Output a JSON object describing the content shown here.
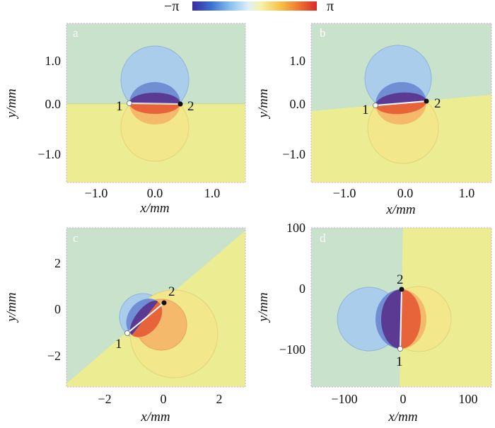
{
  "colorbar": {
    "min_label": "−π",
    "max_label": "π",
    "stops": [
      "#3a2aa0",
      "#3a6fd0",
      "#86c0ec",
      "#dff0f7",
      "#f6f2a8",
      "#f5c54a",
      "#ef7a30",
      "#d8282a"
    ]
  },
  "colors": {
    "background_green": "#c8e2cc",
    "background_yellow": "#ecec92",
    "blue_outer": "#a9cdea",
    "blue_mid": "#6f8ed4",
    "purple_inner": "#5b3a93",
    "yellow_outer": "#f2e78a",
    "orange_mid": "#f4b96a",
    "red_inner": "#e7643a",
    "frame": "#d8a8d8"
  },
  "panels": [
    {
      "letter": "a",
      "x_ticks": [
        "−1.0",
        "0.0",
        "1.0"
      ],
      "x_tick_values": [
        -1.0,
        0.0,
        1.0
      ],
      "y_ticks": [
        "1.0",
        "0.0",
        "−1.0"
      ],
      "y_tick_values": [
        1.0,
        0.0,
        -1.0
      ],
      "x_label": "x/mm",
      "y_label": "y/mm",
      "point1_label": "1",
      "point2_label": "2"
    },
    {
      "letter": "b",
      "x_ticks": [
        "−1.0",
        "0.0",
        "1.0"
      ],
      "x_tick_values": [
        -1.0,
        0.0,
        1.0
      ],
      "y_ticks": [
        "1.0",
        "0.0",
        "−1.0"
      ],
      "y_tick_values": [
        1.0,
        0.0,
        -1.0
      ],
      "x_label": "x/mm",
      "y_label": "y/mm",
      "point1_label": "1",
      "point2_label": "2"
    },
    {
      "letter": "c",
      "x_ticks": [
        "−2",
        "0",
        "2"
      ],
      "x_tick_values": [
        -2,
        0,
        2
      ],
      "y_ticks": [
        "2",
        "0",
        "−2"
      ],
      "y_tick_values": [
        2,
        0,
        -2
      ],
      "x_label": "x/mm",
      "y_label": "y/mm",
      "point1_label": "1",
      "point2_label": "2"
    },
    {
      "letter": "d",
      "x_ticks": [
        "−100",
        "0",
        "100"
      ],
      "x_tick_values": [
        -100,
        0,
        100
      ],
      "y_ticks": [
        "100",
        "0",
        "−100"
      ],
      "y_tick_values": [
        100,
        0,
        -100
      ],
      "x_label": "x/mm",
      "y_label": "y/mm",
      "point1_label": "1",
      "point2_label": "2"
    }
  ]
}
